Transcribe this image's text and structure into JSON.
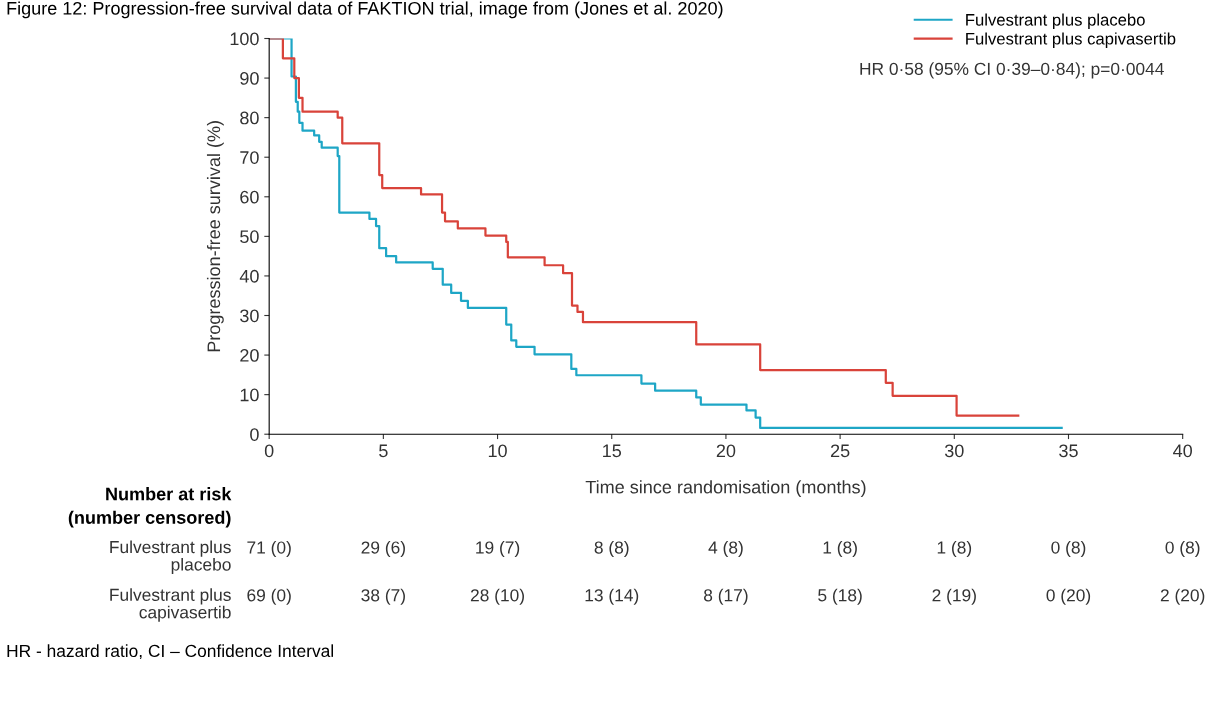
{
  "chart_data": {
    "type": "step",
    "title": "Figure 12: Progression-free survival data of FAKTION trial, image from (Jones et al. 2020)",
    "xlabel": "Time since randomisation (months)",
    "ylabel": "Progression-free survival (%)",
    "xlim": [
      0,
      40
    ],
    "xticks": [
      0,
      5,
      10,
      15,
      20,
      25,
      30,
      35,
      40
    ],
    "ylim": [
      0,
      100
    ],
    "yticks": [
      0,
      10,
      20,
      30,
      40,
      50,
      60,
      70,
      80,
      90,
      100
    ],
    "grid": false,
    "legend": "top right",
    "marker": "none",
    "line_style": "solid",
    "series": [
      {
        "name": "Fulvestrant plus placebo",
        "color": "#1ea6c6",
        "x": [
          0,
          0.98,
          1.17,
          1.25,
          1.32,
          1.46,
          1.97,
          2.19,
          2.3,
          3.0,
          3.07,
          4.39,
          4.68,
          4.82,
          5.12,
          5.56,
          7.16,
          7.6,
          7.97,
          8.4,
          8.7,
          10.38,
          10.6,
          10.82,
          11.62,
          13.23,
          13.45,
          16.3,
          16.9,
          18.7,
          18.9,
          20.9,
          21.3,
          21.5,
          34.7
        ],
        "values": [
          100,
          90.4,
          84,
          81.5,
          78.7,
          76.7,
          75.5,
          73.9,
          72.4,
          70.3,
          56,
          54.4,
          52.6,
          47,
          45,
          43.4,
          41.8,
          37.8,
          35.7,
          33.7,
          31.9,
          27.7,
          23.7,
          22.1,
          20.2,
          16.5,
          14.9,
          12.8,
          11,
          9.3,
          7.5,
          6,
          4.2,
          1.6,
          1.6
        ]
      },
      {
        "name": "Fulvestrant plus capivasertib",
        "color": "#d9433a",
        "x": [
          0,
          0.6,
          1.1,
          1.3,
          1.46,
          3.0,
          3.2,
          4.82,
          4.95,
          6.65,
          7.57,
          7.7,
          8.26,
          9.47,
          10.38,
          10.45,
          12.06,
          12.87,
          13.26,
          13.5,
          13.74,
          18.7,
          21.5,
          27.0,
          27.3,
          30.1,
          32.8
        ],
        "values": [
          100,
          95,
          90,
          85,
          81.5,
          80,
          73.5,
          65.5,
          62.2,
          60.6,
          56,
          53.8,
          52,
          50.2,
          48.6,
          44.7,
          42.7,
          40.7,
          32.5,
          30.9,
          28.3,
          22.7,
          16.2,
          13,
          9.7,
          4.7,
          4.7
        ]
      }
    ],
    "annotations": [
      "HR 0·58 (95% CI 0·39–0·84); p=0·0044",
      "Number at risk",
      "(number censored)",
      "Fulvestrant plus\nplacebo",
      "71 (0)",
      "29 (6)",
      "19 (7)",
      "8 (8)",
      "4 (8)",
      "1 (8)",
      "1 (8)",
      "0 (8)",
      "0 (8)",
      "Fulvestrant plus\ncapivasertib",
      "69 (0)",
      "38 (7)",
      "28 (10)",
      "13 (14)",
      "8 (17)",
      "5 (18)",
      "2 (19)",
      "0 (20)",
      "2 (20)",
      "HR - hazard ratio, CI – Confidence Interval"
    ]
  }
}
